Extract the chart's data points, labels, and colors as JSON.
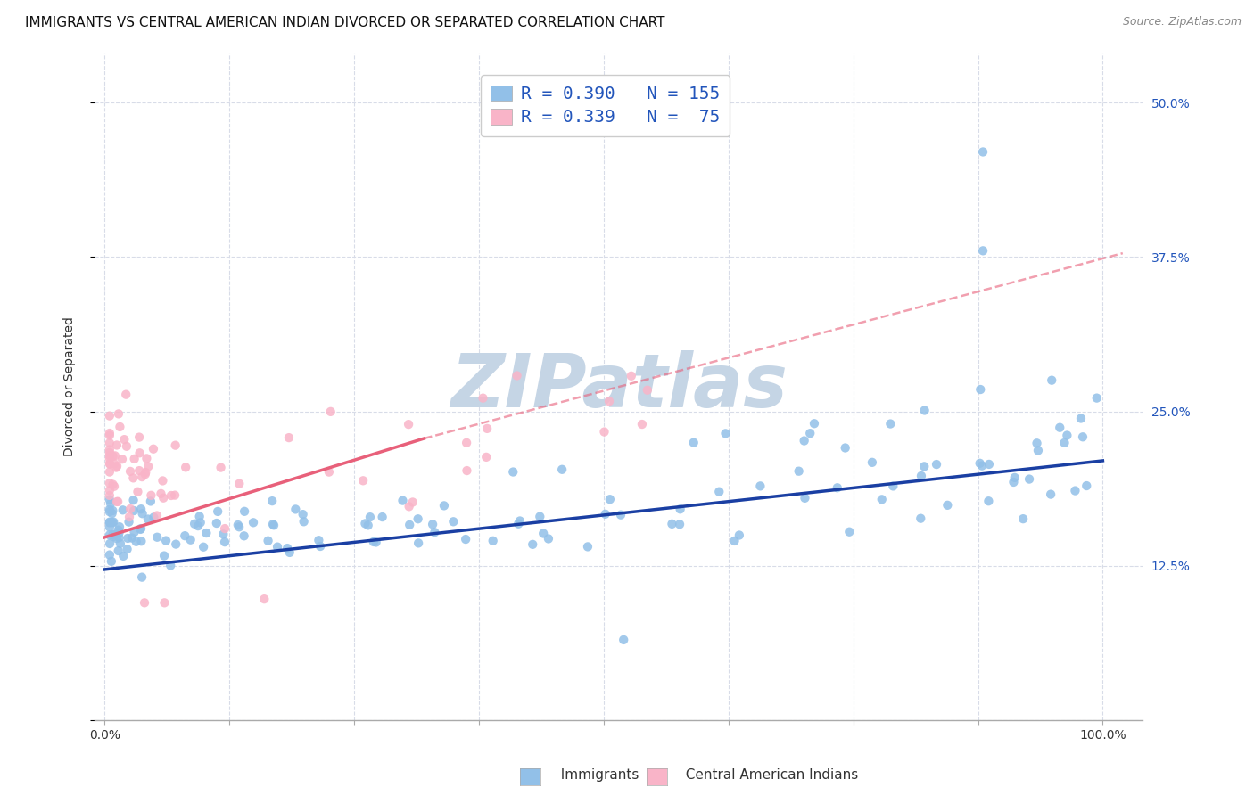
{
  "title": "IMMIGRANTS VS CENTRAL AMERICAN INDIAN DIVORCED OR SEPARATED CORRELATION CHART",
  "source": "Source: ZipAtlas.com",
  "ylabel": "Divorced or Separated",
  "legend_labels": [
    "Immigrants",
    "Central American Indians"
  ],
  "r_blue": 0.39,
  "n_blue": 155,
  "r_pink": 0.339,
  "n_pink": 75,
  "blue_color": "#92c0e8",
  "pink_color": "#f9b4c8",
  "blue_line_color": "#1a3fa3",
  "pink_line_color": "#e8607a",
  "watermark": "ZIPatlas",
  "x_ticks": [
    0.0,
    0.125,
    0.25,
    0.375,
    0.5,
    0.625,
    0.75,
    0.875,
    1.0
  ],
  "x_tick_labels": [
    "0.0%",
    "",
    "",
    "",
    "",
    "",
    "",
    "",
    "100.0%"
  ],
  "y_ticks": [
    0.0,
    0.125,
    0.25,
    0.375,
    0.5
  ],
  "y_tick_labels_right": [
    "",
    "12.5%",
    "25.0%",
    "37.5%",
    "50.0%"
  ],
  "ylim": [
    0.04,
    0.54
  ],
  "xlim": [
    -0.01,
    1.04
  ],
  "grid_color": "#d8dce8",
  "background_color": "#ffffff",
  "title_fontsize": 11,
  "axis_label_fontsize": 10,
  "tick_fontsize": 10,
  "legend_fontsize": 14,
  "watermark_color": "#c5d5e5",
  "watermark_fontsize": 60
}
